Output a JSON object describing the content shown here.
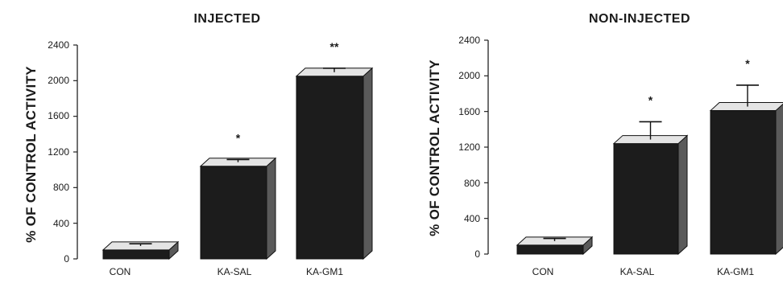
{
  "chart_data": [
    {
      "type": "bar",
      "title": "INJECTED",
      "ylabel": "% OF CONTROL ACTIVITY",
      "xlabel": "",
      "ylim": [
        0,
        2400
      ],
      "yticks": [
        "0",
        "400",
        "800",
        "1200",
        "1600",
        "2000",
        "2400"
      ],
      "categories": [
        "CON",
        "KA-SAL",
        "KA-GM1"
      ],
      "values": [
        100,
        1040,
        2050
      ],
      "errors": [
        25,
        30,
        45
      ],
      "significance": [
        "",
        "*",
        "**"
      ],
      "style": "3d",
      "bar_color": "#1c1c1c",
      "grid": false
    },
    {
      "type": "bar",
      "title": "NON-INJECTED",
      "ylabel": "% OF CONTROL ACTIVITY",
      "xlabel": "",
      "ylim": [
        0,
        2400
      ],
      "yticks": [
        "0",
        "400",
        "800",
        "1200",
        "1600",
        "2000",
        "2400"
      ],
      "categories": [
        "CON",
        "KA-SAL",
        "KA-GM1"
      ],
      "values": [
        100,
        1240,
        1610
      ],
      "errors": [
        30,
        200,
        240
      ],
      "significance": [
        "",
        "*",
        "*"
      ],
      "style": "3d",
      "bar_color": "#1c1c1c",
      "grid": false
    }
  ]
}
